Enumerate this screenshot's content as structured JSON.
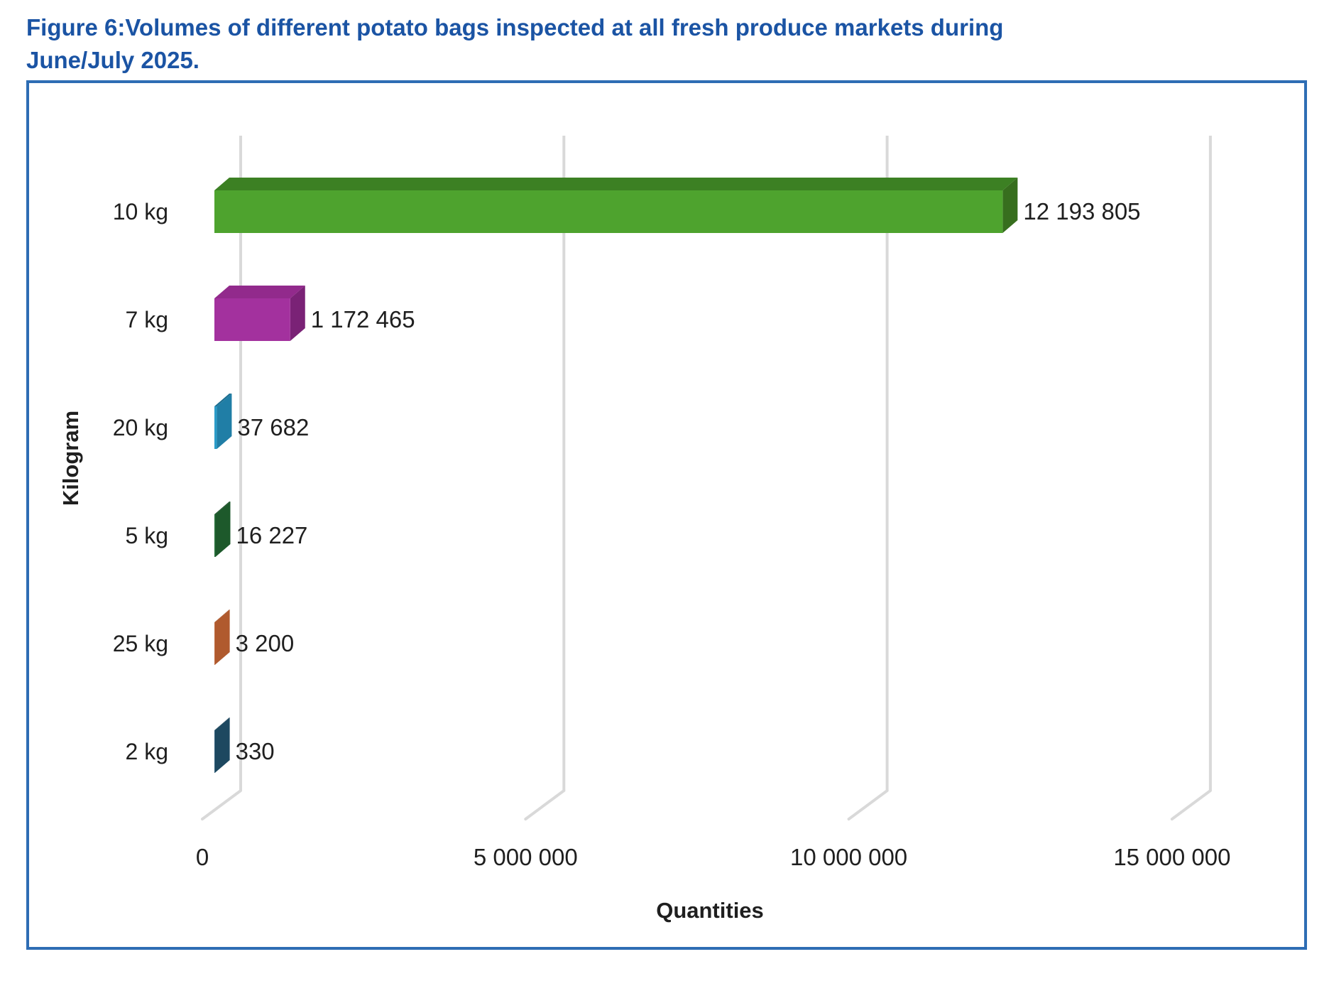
{
  "title": {
    "lines": [
      "Figure 6:Volumes of different potato bags inspected at all fresh produce markets during",
      "June/July 2025."
    ]
  },
  "chart_data": {
    "type": "bar",
    "orientation": "horizontal",
    "style": "3d",
    "title": "Figure 6: Volumes of different potato bags inspected at all fresh produce markets during June/July 2025.",
    "xlabel": "Quantities",
    "ylabel": "Kilogram",
    "categories": [
      "10 kg",
      "7 kg",
      "20 kg",
      "5 kg",
      "25 kg",
      "2 kg"
    ],
    "values": [
      12193805,
      1172465,
      37682,
      16227,
      3200,
      330
    ],
    "value_labels": [
      "12 193 805",
      "1 172 465",
      "37 682",
      "16 227",
      "3 200",
      "330"
    ],
    "xlim": [
      0,
      15000000
    ],
    "x_ticks": [
      0,
      5000000,
      10000000,
      15000000
    ],
    "x_tick_labels": [
      "0",
      "5 000 000",
      "10 000 000",
      "15 000 000"
    ],
    "gridlines": "vertical",
    "legend": false,
    "series_colors": [
      {
        "front": "#4EA32E",
        "top": "#3C8023",
        "side": "#376E1E"
      },
      {
        "front": "#A3319E",
        "top": "#922A8C",
        "side": "#7A2276"
      },
      {
        "front": "#2B9BC8",
        "top": "#1C6E90",
        "side": "#207EA6"
      },
      {
        "front": "#27703A",
        "top": "#174A23",
        "side": "#1D592B"
      },
      {
        "front": "#C06536",
        "top": "#9A4E26",
        "side": "#B05A2E"
      },
      {
        "front": "#25597A",
        "top": "#173C50",
        "side": "#1D4860"
      }
    ]
  },
  "colors": {
    "title_text": "#1B54A4",
    "frame_border": "#2E6DB4",
    "grid": "#D9D9D9",
    "chart_text": "#1F1F1F"
  }
}
